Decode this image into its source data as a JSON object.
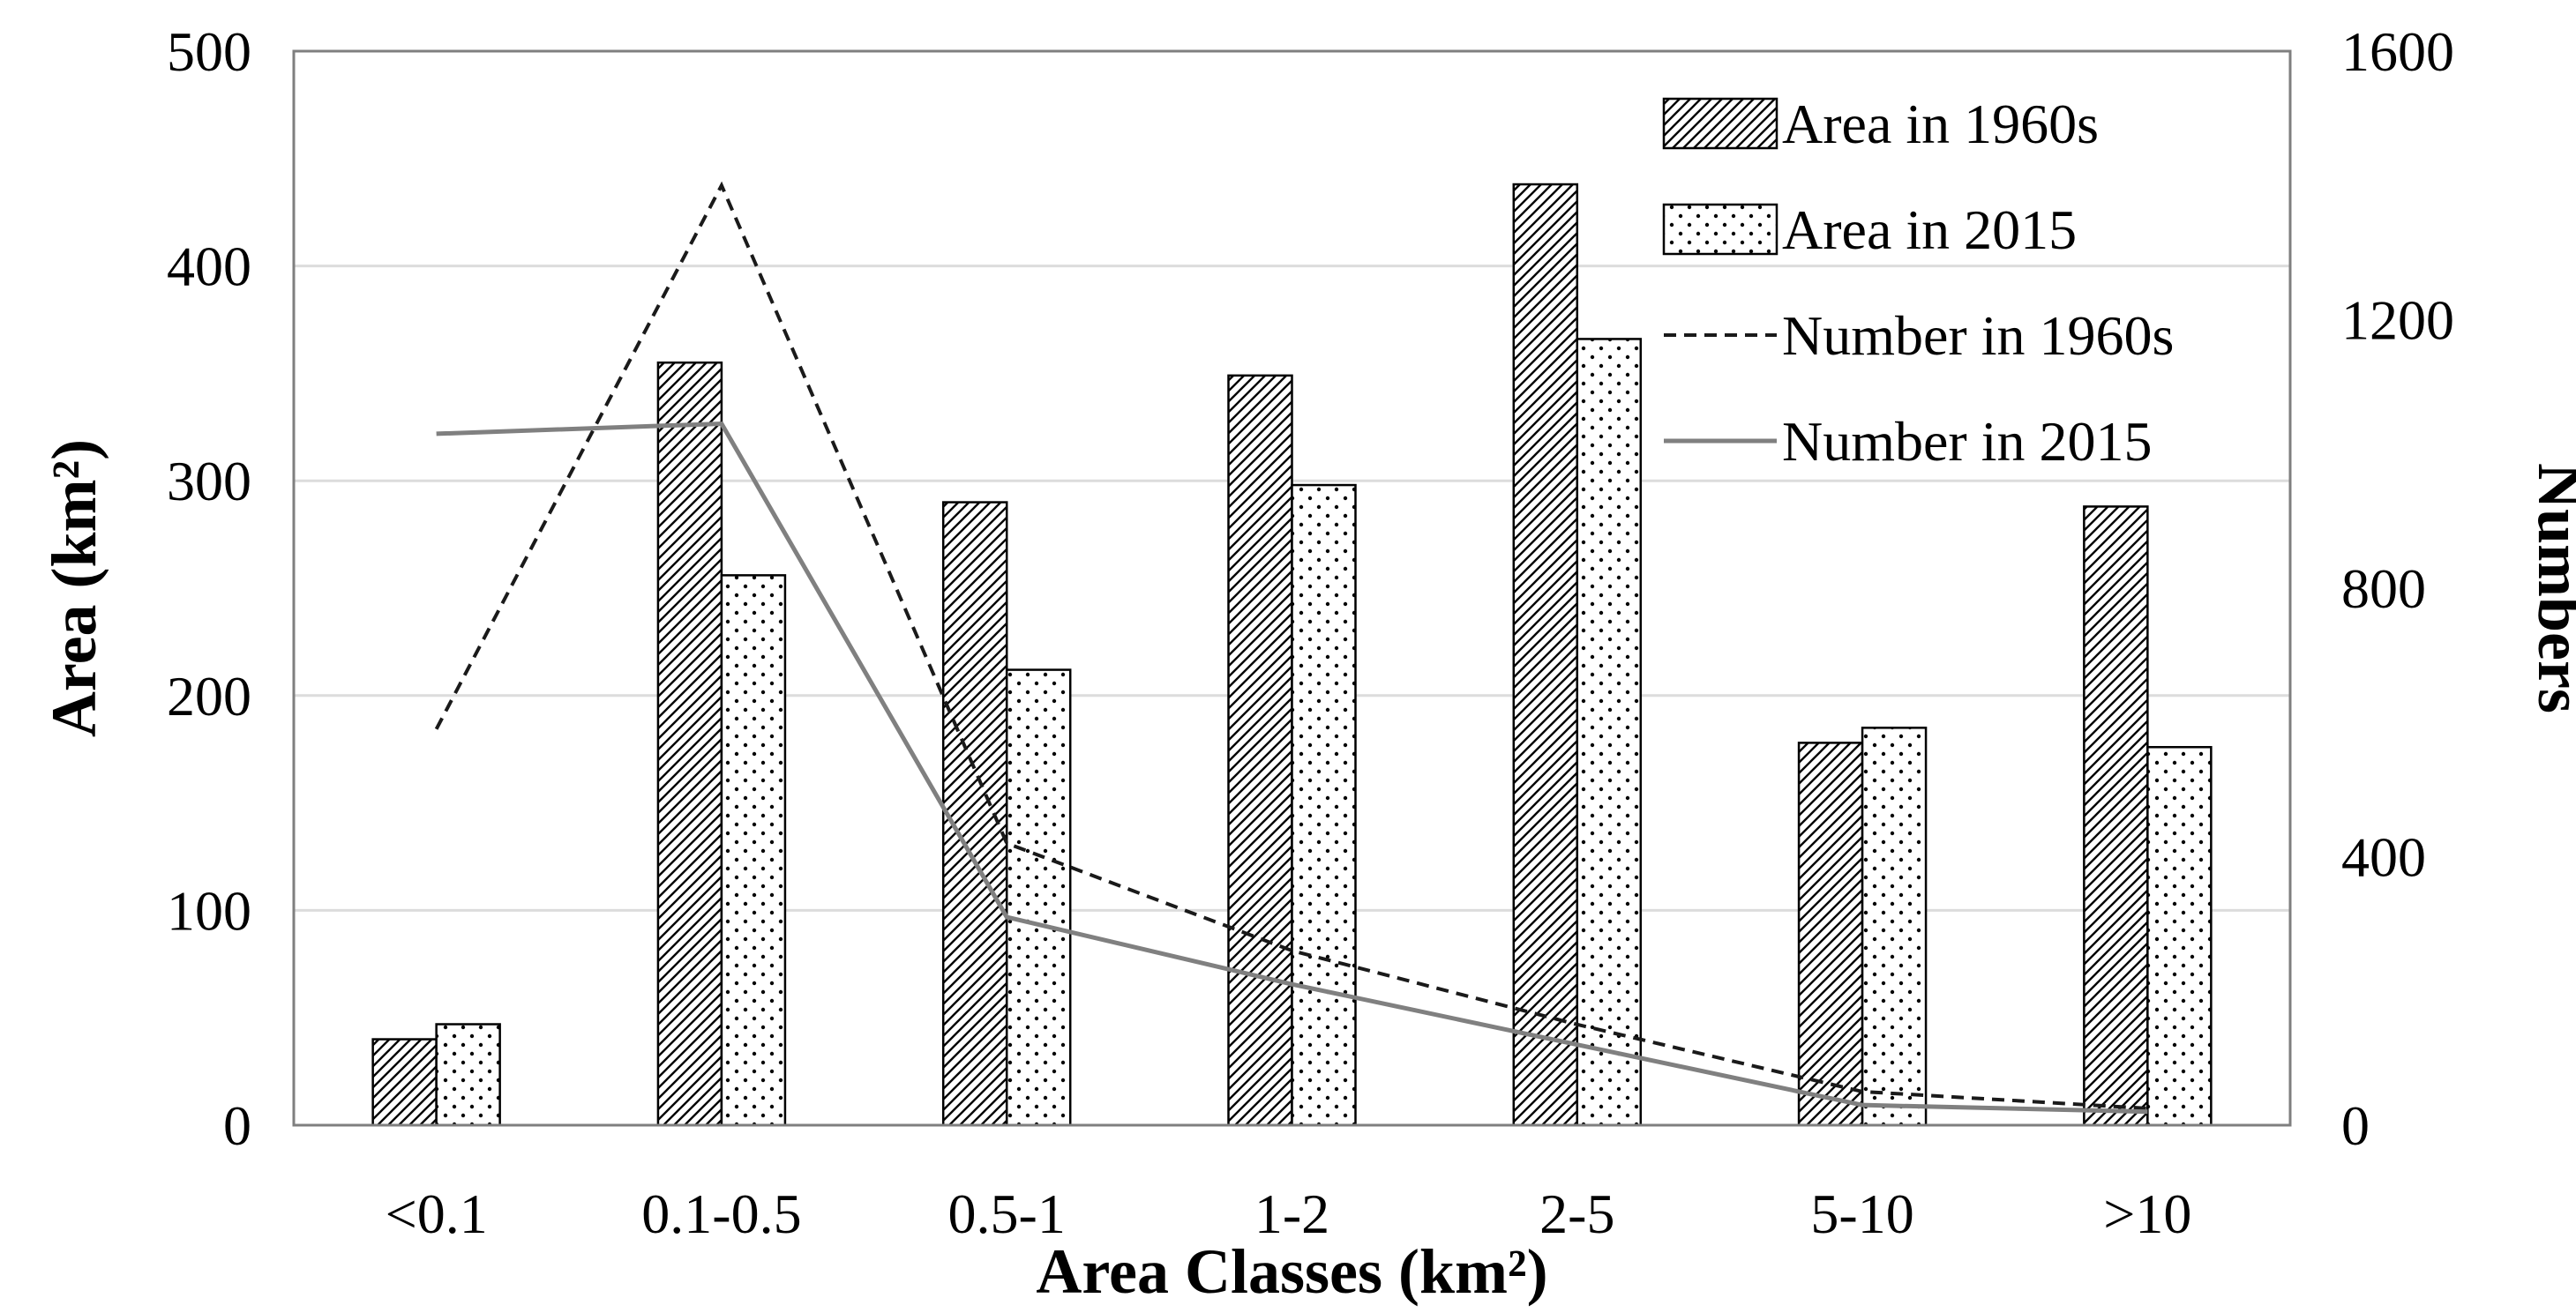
{
  "chart_data": {
    "type": "bar",
    "categories": [
      "<0.1",
      "0.1-0.5",
      "0.5-1",
      "1-2",
      "2-5",
      "5-10",
      ">10"
    ],
    "bar_series": [
      {
        "name": "Area in 1960s",
        "pattern": "hatch",
        "values": [
          40,
          355,
          290,
          349,
          438,
          178,
          288
        ]
      },
      {
        "name": "Area in 2015",
        "pattern": "dots",
        "values": [
          47,
          256,
          212,
          298,
          366,
          185,
          176
        ]
      }
    ],
    "line_series": [
      {
        "name": "Number in 1960s",
        "style": "dashed",
        "color": "#1a1a1a",
        "values": [
          590,
          1400,
          420,
          260,
          150,
          50,
          25
        ]
      },
      {
        "name": "Number in 2015",
        "style": "solid",
        "color": "#808080",
        "values": [
          1030,
          1045,
          310,
          210,
          120,
          30,
          20
        ]
      }
    ],
    "xlabel": "Area Classes (km²)",
    "ylabel": "Area (km²)",
    "y2label": "Numbers",
    "ylim": [
      0,
      500
    ],
    "y2lim": [
      0,
      1600
    ],
    "yticks": [
      "0",
      "100",
      "200",
      "300",
      "400",
      "500"
    ],
    "y2ticks": [
      "0",
      "400",
      "800",
      "1200",
      "1600"
    ],
    "grid": true,
    "legend_position": "top-right"
  }
}
